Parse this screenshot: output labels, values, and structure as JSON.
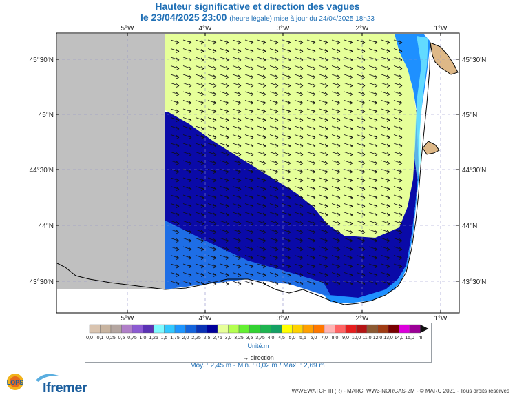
{
  "title": "Hauteur significative et direction des vagues",
  "subtitle_main": "le 23/04/2025 23:00",
  "subtitle_note": "(heure légale) mise à jour du 24/04/2025 18h23",
  "map": {
    "lon_ticks": [
      "5°W",
      "4°W",
      "3°W",
      "2°W",
      "1°W"
    ],
    "lat_ticks": [
      "45°30'N",
      "45°N",
      "44°30'N",
      "44°N",
      "43°30'N"
    ],
    "land_color": "#deb887",
    "nodata_color": "#c0c0c0",
    "main_wave_class_color": "#e6ff99",
    "arrow_direction": "toward south-east"
  },
  "legend": {
    "labels": [
      "0,0",
      "0,1",
      "0,25",
      "0,5",
      "0,75",
      "1,0",
      "1,25",
      "1,5",
      "1,75",
      "2,0",
      "2,25",
      "2,5",
      "2,75",
      "3,0",
      "3,25",
      "3,5",
      "3,75",
      "4,0",
      "4,5",
      "5,0",
      "5,5",
      "6,0",
      "7,0",
      "8,0",
      "9,0",
      "10,0",
      "11,0",
      "12,0",
      "13,0",
      "14,0",
      "15,0",
      "m"
    ],
    "colors": [
      "#d9c4b0",
      "#c8b4a0",
      "#b4a6a0",
      "#b07fc8",
      "#8c5ad2",
      "#5a32b4",
      "#7ffaff",
      "#32c8ff",
      "#1e96ff",
      "#1464dc",
      "#0a32b4",
      "#00009a",
      "#e6ff99",
      "#b4ff50",
      "#64f032",
      "#32d232",
      "#1eb450",
      "#14a064",
      "#ffff00",
      "#ffd200",
      "#ffa000",
      "#ff7800",
      "#ffb4b4",
      "#ff6464",
      "#e61e1e",
      "#b41414",
      "#8c5a32",
      "#a03c14",
      "#780000",
      "#dc00dc",
      "#9b0096"
    ],
    "unit": "Unité:m",
    "direction": "direction"
  },
  "stats": "Moy. : 2,45 m   -   Min. : 0,02 m / Max. : 2,69 m",
  "logos": {
    "lops": "LOPS",
    "ifremer": "Ifremer"
  },
  "copyright": "WAVEWATCH III (R) - MARC_WW3-NORGAS-2M - © MARC 2021 - Tous droits réservés"
}
